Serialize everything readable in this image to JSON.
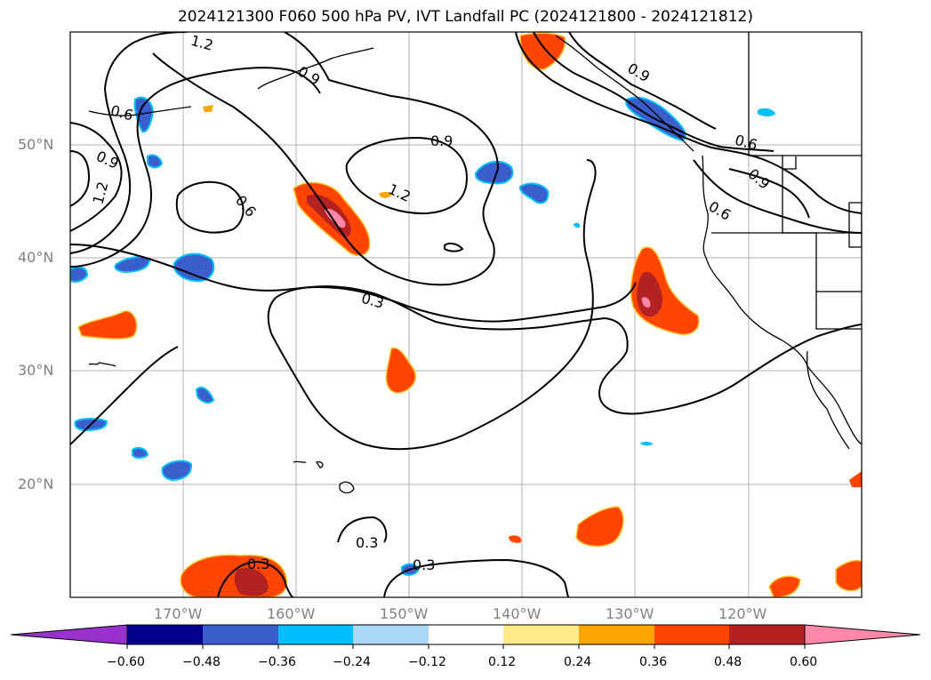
{
  "title": "2024121300 F060 500 hPa PV, IVT Landfall PC (2024121800 - 2024121812)",
  "map": {
    "lat_labels": [
      "50°N",
      "40°N",
      "30°N",
      "20°N"
    ],
    "lon_labels": [
      "170°W",
      "160°W",
      "150°W",
      "140°W",
      "130°W",
      "120°W"
    ],
    "contour_labels": [
      "1.2",
      "0.9",
      "0.6",
      "0.9",
      "1.2",
      "0.6",
      "0.9",
      "1.2",
      "0.3",
      "0.9",
      "0.6",
      "0.9",
      "0.6",
      "0.3",
      "0.3",
      "0.3"
    ],
    "contour_line_color": "#000000",
    "gridlines": true,
    "coastlines": true
  },
  "colorbar": {
    "tick_labels": [
      "−0.60",
      "−0.48",
      "−0.36",
      "−0.24",
      "−0.12",
      "0.12",
      "0.24",
      "0.36",
      "0.48",
      "0.60"
    ],
    "colors": [
      "#9932cc",
      "#00008b",
      "#3a5fcd",
      "#00bfff",
      "#add8f5",
      "#ffffff",
      "#ffeb8a",
      "#ffa500",
      "#ff4500",
      "#b22222",
      "#ff88aa"
    ]
  }
}
